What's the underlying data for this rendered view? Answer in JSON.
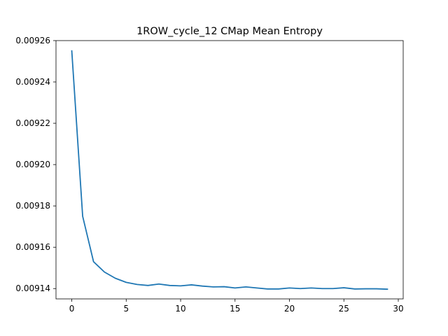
{
  "chart_data": {
    "type": "line",
    "title": "1ROW_cycle_12 CMap Mean Entropy",
    "xlabel": "",
    "ylabel": "",
    "xlim": [
      -1.45,
      30.45
    ],
    "ylim": [
      0.009135,
      0.00926
    ],
    "x_ticks": [
      0,
      5,
      10,
      15,
      20,
      25,
      30
    ],
    "y_ticks": [
      0.00914,
      0.00916,
      0.00918,
      0.0092,
      0.00922,
      0.00924,
      0.00926
    ],
    "y_tick_labels": [
      "0.00914",
      "0.00916",
      "0.00918",
      "0.00920",
      "0.00922",
      "0.00924",
      "0.00926"
    ],
    "grid": false,
    "series": [
      {
        "color": "#1f77b4",
        "x": [
          0,
          1,
          2,
          3,
          4,
          5,
          6,
          7,
          8,
          9,
          10,
          11,
          12,
          13,
          14,
          15,
          16,
          17,
          18,
          19,
          20,
          21,
          22,
          23,
          24,
          25,
          26,
          27,
          28,
          29
        ],
        "values": [
          0.009255,
          0.009175,
          0.009153,
          0.009148,
          0.009145,
          0.009143,
          0.009142,
          0.0091415,
          0.0091422,
          0.0091415,
          0.0091413,
          0.0091418,
          0.0091412,
          0.0091408,
          0.0091409,
          0.0091403,
          0.0091408,
          0.0091403,
          0.0091398,
          0.0091398,
          0.0091403,
          0.00914,
          0.0091403,
          0.00914,
          0.00914,
          0.0091404,
          0.0091398,
          0.0091399,
          0.0091399,
          0.0091397
        ]
      }
    ]
  }
}
